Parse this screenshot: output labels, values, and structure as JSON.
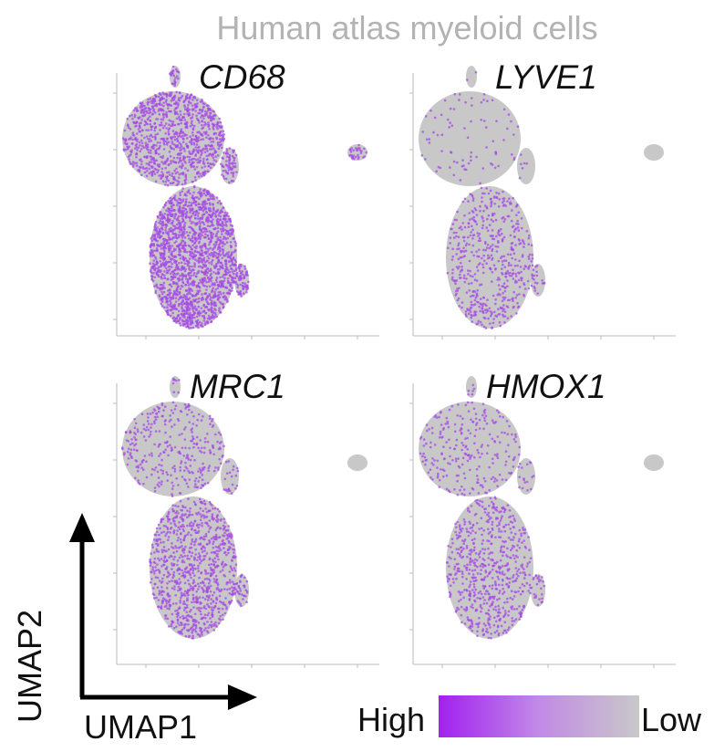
{
  "title": "Human atlas myeloid cells",
  "axes": {
    "x_label": "UMAP1",
    "y_label": "UMAP2"
  },
  "legend": {
    "high_label": "High",
    "low_label": "Low",
    "high_color": "#a021f0",
    "low_color": "#c8c8c8"
  },
  "colors": {
    "cell_base": "#c8c8c8",
    "expression": "#a54ae6",
    "axis": "#bbbbbb"
  },
  "chart_data": [
    {
      "type": "scatter",
      "gene": "CD68",
      "expression_levels": {
        "upper_lobe": 0.6,
        "lower_lobe": 0.85,
        "isolated_cluster": 0.55
      }
    },
    {
      "type": "scatter",
      "gene": "LYVE1",
      "expression_levels": {
        "upper_lobe": 0.05,
        "lower_lobe": 0.25,
        "isolated_cluster": 0.0
      }
    },
    {
      "type": "scatter",
      "gene": "MRC1",
      "expression_levels": {
        "upper_lobe": 0.2,
        "lower_lobe": 0.45,
        "isolated_cluster": 0.0
      }
    },
    {
      "type": "scatter",
      "gene": "HMOX1",
      "expression_levels": {
        "upper_lobe": 0.15,
        "lower_lobe": 0.3,
        "isolated_cluster": 0.0
      }
    }
  ]
}
